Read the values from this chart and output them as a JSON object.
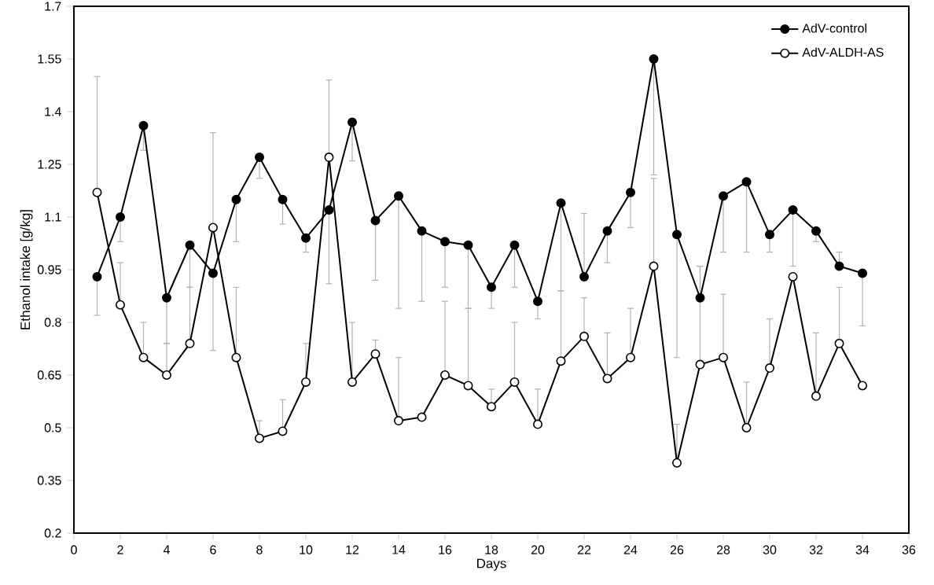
{
  "chart_data": {
    "type": "line",
    "xlabel": "Days",
    "ylabel": "Ethanol intake [g/kg]",
    "x": [
      1,
      2,
      3,
      4,
      5,
      6,
      7,
      8,
      9,
      10,
      11,
      12,
      13,
      14,
      15,
      16,
      17,
      18,
      19,
      20,
      21,
      22,
      23,
      24,
      25,
      26,
      27,
      28,
      29,
      30,
      31,
      32,
      33,
      34
    ],
    "series": [
      {
        "name": "AdV-control",
        "color": "#000000",
        "values": [
          0.93,
          1.1,
          1.36,
          0.87,
          1.02,
          0.94,
          1.15,
          1.27,
          1.15,
          1.04,
          1.12,
          1.37,
          1.09,
          1.16,
          1.06,
          1.03,
          1.02,
          0.9,
          1.02,
          0.86,
          1.14,
          0.93,
          1.06,
          1.17,
          1.55,
          1.05,
          0.87,
          1.16,
          1.2,
          1.05,
          1.12,
          1.06,
          0.96,
          0.94
        ],
        "errors": [
          [
            0.82,
            0.93
          ],
          [
            1.03,
            1.1
          ],
          [
            1.29,
            1.36
          ],
          [
            0.74,
            0.87
          ],
          [
            0.9,
            1.02
          ],
          [
            0.72,
            0.94
          ],
          [
            1.03,
            1.15
          ],
          [
            1.21,
            1.27
          ],
          [
            1.08,
            1.15
          ],
          [
            1.0,
            1.04
          ],
          [
            0.91,
            1.12
          ],
          [
            1.26,
            1.37
          ],
          [
            0.92,
            1.09
          ],
          [
            0.84,
            1.16
          ],
          [
            0.86,
            1.06
          ],
          [
            0.9,
            1.03
          ],
          [
            0.84,
            1.02
          ],
          [
            0.84,
            0.9
          ],
          [
            0.9,
            1.02
          ],
          [
            0.81,
            0.86
          ],
          [
            0.89,
            1.14
          ],
          [
            0.93,
            1.11
          ],
          [
            0.97,
            1.06
          ],
          [
            1.07,
            1.17
          ],
          [
            1.22,
            1.55
          ],
          [
            0.7,
            1.05
          ],
          [
            0.87,
            0.96
          ],
          [
            1.0,
            1.16
          ],
          [
            1.0,
            1.2
          ],
          [
            1.0,
            1.05
          ],
          [
            0.96,
            1.12
          ],
          [
            1.03,
            1.06
          ],
          [
            0.96,
            1.0
          ],
          [
            0.79,
            0.94
          ]
        ]
      },
      {
        "name": "AdV-ALDH-AS",
        "color": "#000000",
        "values": [
          1.17,
          0.85,
          0.7,
          0.65,
          0.74,
          1.07,
          0.7,
          0.47,
          0.49,
          0.63,
          1.27,
          0.63,
          0.71,
          0.52,
          0.53,
          0.65,
          0.62,
          0.56,
          0.63,
          0.51,
          0.69,
          0.76,
          0.64,
          0.7,
          0.96,
          0.4,
          0.68,
          0.7,
          0.5,
          0.67,
          0.93,
          0.59,
          0.74,
          0.62
        ],
        "errors": [
          [
            1.17,
            1.5
          ],
          [
            0.85,
            0.97
          ],
          [
            0.7,
            0.8
          ],
          [
            0.65,
            0.74
          ],
          [
            0.74,
            0.9
          ],
          [
            1.07,
            1.34
          ],
          [
            0.7,
            0.9
          ],
          [
            0.47,
            0.52
          ],
          [
            0.49,
            0.58
          ],
          [
            0.63,
            0.74
          ],
          [
            1.27,
            1.49
          ],
          [
            0.63,
            0.8
          ],
          [
            0.71,
            0.75
          ],
          [
            0.52,
            0.7
          ],
          null,
          [
            0.65,
            0.86
          ],
          [
            0.62,
            0.84
          ],
          [
            0.56,
            0.61
          ],
          [
            0.63,
            0.8
          ],
          [
            0.51,
            0.61
          ],
          [
            0.69,
            0.89
          ],
          [
            0.76,
            0.87
          ],
          [
            0.64,
            0.77
          ],
          [
            0.7,
            0.84
          ],
          [
            0.96,
            1.21
          ],
          [
            0.4,
            0.51
          ],
          [
            0.68,
            0.96
          ],
          [
            0.7,
            0.88
          ],
          [
            0.5,
            0.63
          ],
          [
            0.67,
            0.81
          ],
          null,
          [
            0.59,
            0.77
          ],
          [
            0.74,
            0.9
          ],
          null
        ]
      }
    ],
    "xlim": [
      0,
      36
    ],
    "xticks": [
      0,
      2,
      4,
      6,
      8,
      10,
      12,
      14,
      16,
      18,
      20,
      22,
      24,
      26,
      28,
      30,
      32,
      34,
      36
    ],
    "ylim": [
      0.2,
      1.7
    ],
    "yticks": [
      0.2,
      0.35,
      0.5,
      0.65,
      0.8,
      0.95,
      1.1,
      1.25,
      1.4,
      1.55,
      1.7
    ],
    "legend": "top right",
    "marker": "circle",
    "line_style": "solid"
  }
}
